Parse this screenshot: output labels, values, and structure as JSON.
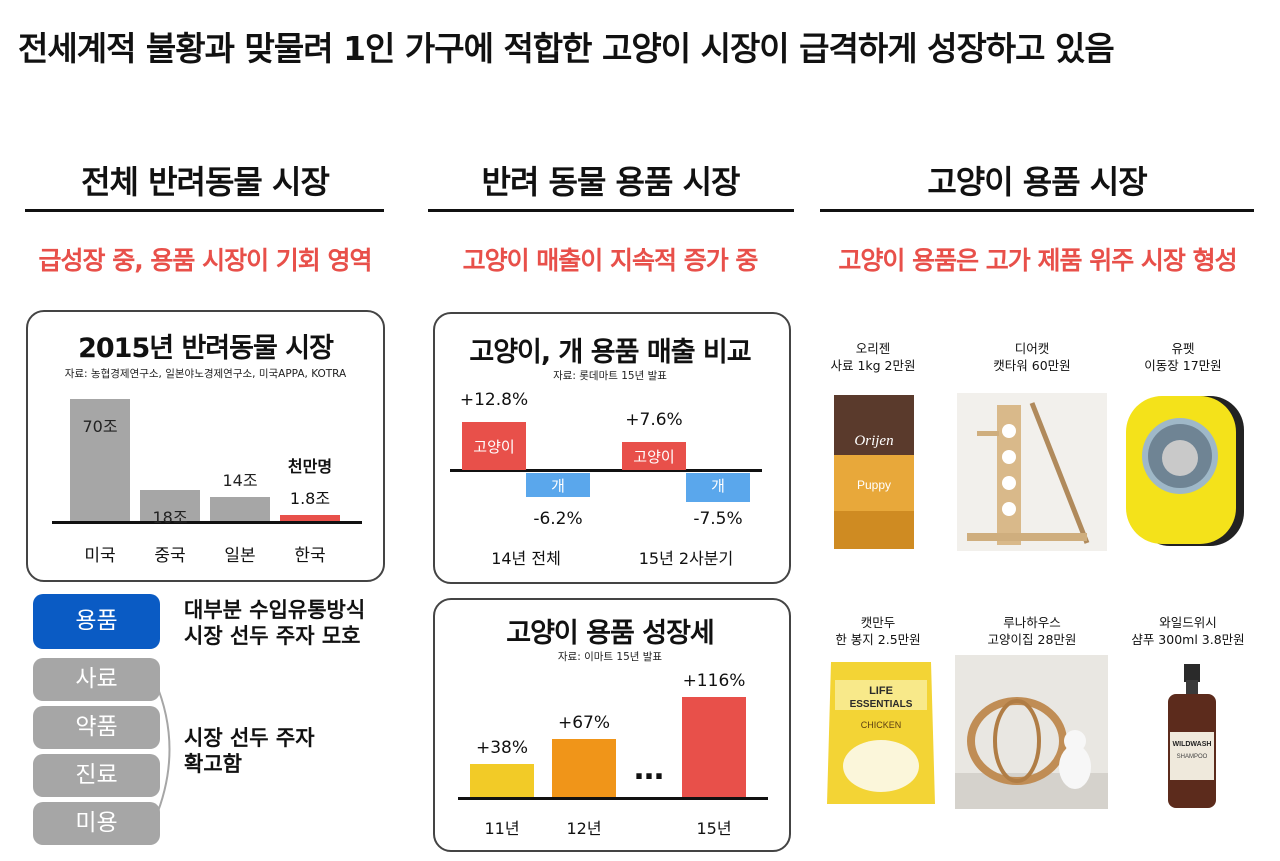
{
  "main_title": "전세계적 불황과 맞물려 1인 가구에 적합한 고양이 시장이 급격하게 성장하고 있음",
  "columns": [
    {
      "title": "전체 반려동물 시장",
      "subtitle": "급성장 중, 용품 시장이 기회 영역"
    },
    {
      "title": "반려 동물 용품 시장",
      "subtitle": "고양이 매출이 지속적 증가 중"
    },
    {
      "title": "고양이 용품 시장",
      "subtitle": "고양이 용품은 고가 제품 위주 시장 형성"
    }
  ],
  "market_chart": {
    "title": "2015년 반려동물 시장",
    "source": "자료: 농협경제연구소, 일본야노경제연구소, 미국APPA, KOTRA",
    "korea_unit_label": "천만명"
  },
  "sales_compare": {
    "title": "고양이, 개 용품 매출 비교",
    "source": "자료: 롯데마트 15년 발표",
    "cat_label": "고양이",
    "dog_label": "개"
  },
  "growth_chart": {
    "title": "고양이 용품 성장세",
    "source": "자료: 이마트 15년 발표",
    "ellipsis": "…"
  },
  "chart_data": [
    {
      "type": "bar",
      "title": "2015년 반려동물 시장",
      "categories": [
        "미국",
        "중국",
        "일본",
        "한국"
      ],
      "values": [
        70,
        18,
        14,
        1.8
      ],
      "value_labels": [
        "70조",
        "18조",
        "14조",
        "1.8조"
      ],
      "highlight_color": "#e8504a",
      "base_color": "#a6a6a6"
    },
    {
      "type": "bar",
      "title": "고양이, 개 용품 매출 비교",
      "categories": [
        "14년 전체",
        "15년 2사분기"
      ],
      "series": [
        {
          "name": "고양이",
          "values": [
            12.8,
            7.6
          ],
          "labels": [
            "+12.8%",
            "+7.6%"
          ],
          "color": "#e8504a"
        },
        {
          "name": "개",
          "values": [
            -6.2,
            -7.5
          ],
          "labels": [
            "-6.2%",
            "-7.5%"
          ],
          "color": "#5aa7ec"
        }
      ]
    },
    {
      "type": "bar",
      "title": "고양이 용품 성장세",
      "categories": [
        "11년",
        "12년",
        "15년"
      ],
      "values": [
        38,
        67,
        116
      ],
      "value_labels": [
        "+38%",
        "+67%",
        "+116%"
      ],
      "colors": [
        "#f2cb27",
        "#f09519",
        "#e8504a"
      ]
    }
  ],
  "segments": {
    "primary": {
      "label": "용품",
      "desc1": "대부분 수입유통방식",
      "desc2": "시장 선두 주자 모호"
    },
    "others": [
      "사료",
      "약품",
      "진료",
      "미용"
    ],
    "others_desc1": "시장 선두 주자",
    "others_desc2": "확고함"
  },
  "products": [
    {
      "brand": "오리젠",
      "desc": "사료 1kg 2만원",
      "icon": "cat-food-bag"
    },
    {
      "brand": "디어캣",
      "desc": "캣타워 60만원",
      "icon": "cat-tower"
    },
    {
      "brand": "유펫",
      "desc": "이동장 17만원",
      "icon": "pet-carrier"
    },
    {
      "brand": "캣만두",
      "desc": "한 봉지 2.5만원",
      "icon": "treat-bag"
    },
    {
      "brand": "루나하우스",
      "desc": "고양이집 28만원",
      "icon": "cat-house"
    },
    {
      "brand": "와일드위시",
      "desc": "샴푸 300ml 3.8만원",
      "icon": "shampoo-bottle"
    }
  ],
  "product_texts": {
    "orijen": "Orijen",
    "puppy": "Puppy",
    "life": "LIFE",
    "essentials": "ESSENTIALS",
    "chicken": "CHICKEN",
    "wildwash": "WILDWASH",
    "shampoo": "SHAMPOO"
  }
}
